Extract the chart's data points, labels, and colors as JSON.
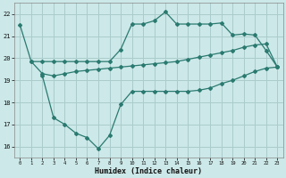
{
  "xlabel": "Humidex (Indice chaleur)",
  "bg_color": "#cce8e8",
  "grid_color": "#aacccc",
  "line_color": "#2a7a70",
  "xlim": [
    -0.5,
    23.5
  ],
  "ylim": [
    15.5,
    22.5
  ],
  "yticks": [
    16,
    17,
    18,
    19,
    20,
    21,
    22
  ],
  "xticks": [
    0,
    1,
    2,
    3,
    4,
    5,
    6,
    7,
    8,
    9,
    10,
    11,
    12,
    13,
    14,
    15,
    16,
    17,
    18,
    19,
    20,
    21,
    22,
    23
  ],
  "line1_x": [
    0,
    1,
    2,
    3,
    4,
    5,
    6,
    7,
    8,
    9,
    10,
    11,
    12,
    13,
    14,
    15,
    16,
    17,
    18,
    19,
    20,
    21,
    22,
    23
  ],
  "line1_y": [
    21.5,
    19.85,
    19.85,
    19.85,
    19.85,
    19.85,
    19.85,
    19.85,
    19.85,
    20.4,
    21.55,
    21.55,
    21.7,
    22.1,
    21.55,
    21.55,
    21.55,
    21.55,
    21.6,
    21.05,
    21.1,
    21.05,
    20.35,
    19.6
  ],
  "line2_x": [
    1,
    2,
    3,
    4,
    5,
    6,
    7,
    8,
    9,
    10,
    11,
    12,
    13,
    14,
    15,
    16,
    17,
    18,
    19,
    20,
    21,
    22,
    23
  ],
  "line2_y": [
    19.85,
    19.3,
    19.2,
    19.3,
    19.4,
    19.45,
    19.5,
    19.55,
    19.6,
    19.65,
    19.7,
    19.75,
    19.8,
    19.85,
    19.95,
    20.05,
    20.15,
    20.25,
    20.35,
    20.5,
    20.6,
    20.65,
    19.6
  ],
  "line3_x": [
    2,
    3,
    4,
    5,
    6,
    7,
    8,
    9,
    10,
    11,
    12,
    13,
    14,
    15,
    16,
    17,
    18,
    19,
    20,
    21,
    22,
    23
  ],
  "line3_y": [
    19.2,
    17.3,
    17.0,
    16.6,
    16.4,
    15.9,
    16.5,
    17.9,
    18.5,
    18.5,
    18.5,
    18.5,
    18.5,
    18.5,
    18.55,
    18.65,
    18.85,
    19.0,
    19.2,
    19.4,
    19.55,
    19.6
  ]
}
